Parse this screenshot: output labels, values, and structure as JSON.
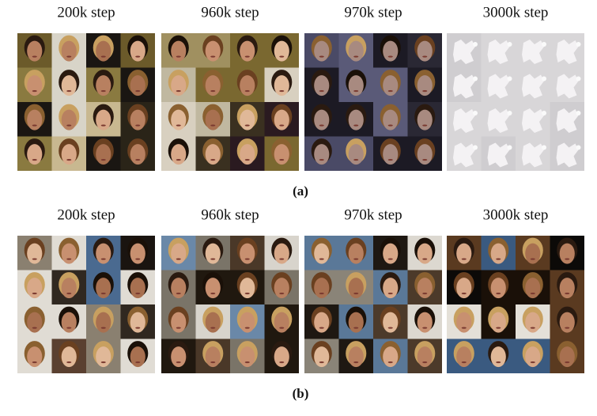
{
  "panels": [
    {
      "columns": [
        "200k step",
        "960k step",
        "970k step",
        "3000k step"
      ],
      "caption": "(a)"
    },
    {
      "columns": [
        "200k step",
        "960k step",
        "970k step",
        "3000k step"
      ],
      "caption": "(b)"
    }
  ]
}
